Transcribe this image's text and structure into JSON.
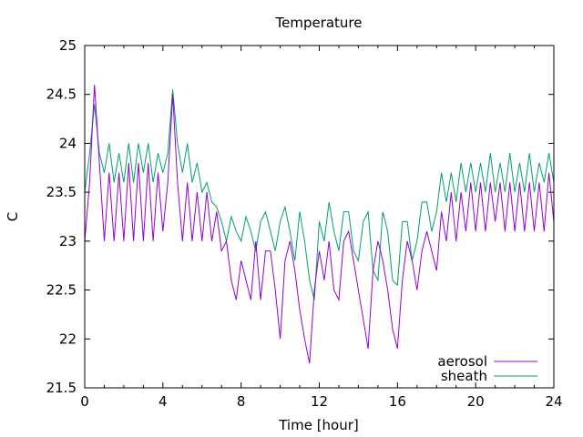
{
  "chart_data": {
    "type": "line",
    "title": "Temperature",
    "xlabel": "Time [hour]",
    "ylabel": "C",
    "xlim": [
      0,
      24
    ],
    "ylim": [
      21.5,
      25
    ],
    "xticks": [
      "0",
      "4",
      "8",
      "12",
      "16",
      "20",
      "24"
    ],
    "xtick_values": [
      0,
      4,
      8,
      12,
      16,
      20,
      24
    ],
    "yticks": [
      "21.5",
      "22",
      "22.5",
      "23",
      "23.5",
      "24",
      "24.5",
      "25"
    ],
    "ytick_values": [
      21.5,
      22,
      22.5,
      23,
      23.5,
      24,
      24.5,
      25
    ],
    "grid": false,
    "legend_position": "bottom-right",
    "x_start": 0,
    "x_step": 0.25,
    "series": [
      {
        "name": "aerosol",
        "color": "#9400d3",
        "values": [
          23.0,
          23.6,
          24.6,
          23.8,
          23.0,
          23.7,
          23.0,
          23.7,
          23.0,
          23.8,
          23.0,
          23.8,
          23.0,
          23.8,
          23.0,
          23.7,
          23.1,
          23.6,
          24.5,
          23.6,
          23.0,
          23.6,
          23.0,
          23.5,
          23.0,
          23.5,
          23.0,
          23.3,
          22.9,
          23.0,
          22.6,
          22.4,
          22.8,
          22.6,
          22.4,
          23.0,
          22.4,
          22.9,
          22.9,
          22.5,
          22.0,
          22.8,
          23.0,
          22.7,
          22.3,
          22.0,
          21.75,
          22.5,
          22.9,
          22.6,
          23.0,
          22.5,
          22.4,
          23.0,
          23.1,
          22.8,
          22.5,
          22.2,
          21.9,
          22.7,
          23.0,
          22.8,
          22.5,
          22.1,
          21.9,
          22.6,
          23.0,
          22.8,
          22.5,
          22.9,
          23.1,
          22.9,
          22.7,
          23.3,
          23.0,
          23.5,
          23.0,
          23.5,
          23.1,
          23.6,
          23.1,
          23.6,
          23.1,
          23.6,
          23.2,
          23.6,
          23.1,
          23.6,
          23.1,
          23.6,
          23.1,
          23.6,
          23.1,
          23.6,
          23.1,
          23.7,
          23.2
        ]
      },
      {
        "name": "sheath",
        "color": "#009e73",
        "values": [
          23.5,
          23.9,
          24.4,
          23.9,
          23.7,
          24.0,
          23.6,
          23.9,
          23.6,
          24.0,
          23.6,
          24.0,
          23.7,
          24.0,
          23.6,
          23.9,
          23.7,
          23.9,
          24.55,
          24.0,
          23.7,
          24.0,
          23.6,
          23.8,
          23.5,
          23.6,
          23.4,
          23.35,
          23.2,
          23.0,
          23.25,
          23.1,
          23.0,
          23.25,
          23.1,
          22.9,
          23.2,
          23.3,
          23.1,
          22.9,
          23.2,
          23.35,
          23.1,
          22.8,
          23.3,
          23.0,
          22.6,
          22.4,
          23.2,
          23.0,
          23.4,
          23.1,
          22.9,
          23.3,
          23.3,
          22.9,
          22.8,
          23.2,
          23.3,
          22.7,
          22.6,
          23.3,
          23.1,
          22.6,
          22.55,
          23.2,
          23.2,
          22.8,
          23.0,
          23.4,
          23.4,
          23.1,
          23.3,
          23.7,
          23.4,
          23.7,
          23.4,
          23.8,
          23.5,
          23.8,
          23.5,
          23.8,
          23.5,
          23.9,
          23.5,
          23.8,
          23.5,
          23.9,
          23.5,
          23.8,
          23.5,
          23.9,
          23.5,
          23.8,
          23.6,
          23.9,
          23.6
        ]
      }
    ]
  }
}
